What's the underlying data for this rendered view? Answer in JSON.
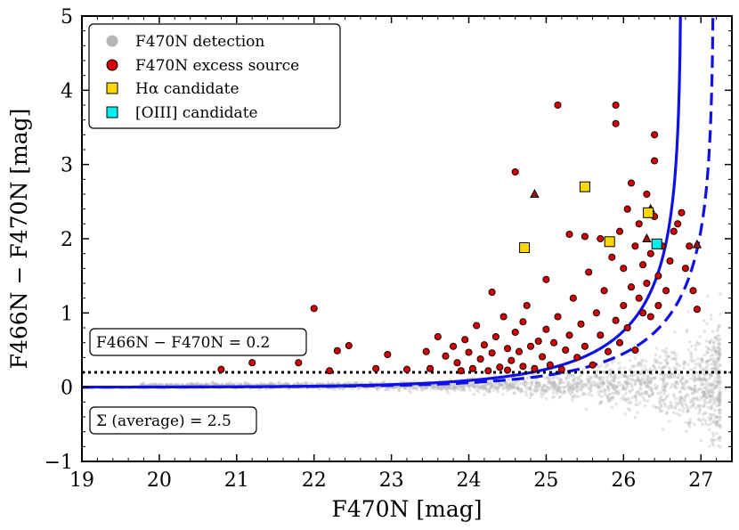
{
  "colors": {
    "detection": "#b5b5b5",
    "excess": "#d40000",
    "halpha": "#ffd700",
    "oiii": "#00f0f0",
    "curve": "#1010e8",
    "frame": "#000000"
  },
  "legend": {
    "placement": "top-left",
    "entries": [
      {
        "label": "F470N detection",
        "marker": "circle",
        "color": "#b5b5b5"
      },
      {
        "label": "F470N excess source",
        "marker": "circle",
        "color": "#d40000"
      },
      {
        "label": "Hα candidate",
        "marker": "square",
        "color": "#ffd700"
      },
      {
        "label": "[OIII] candidate",
        "marker": "square",
        "color": "#00f0f0"
      }
    ]
  },
  "annotations": {
    "threshold": "F466N − F470N = 0.2",
    "sigma": "Σ (average) = 2.5"
  },
  "chart_data": {
    "type": "scatter",
    "title": "",
    "xlabel": "F470N [mag]",
    "ylabel": "F466N − F470N [mag]",
    "xlim": [
      19,
      27.4
    ],
    "ylim": [
      -1,
      5
    ],
    "xticks": [
      "19",
      "20",
      "21",
      "22",
      "23",
      "24",
      "25",
      "26",
      "27"
    ],
    "yticks": [
      "−1",
      "0",
      "1",
      "2",
      "3",
      "4",
      "5"
    ],
    "grid": false,
    "threshold_line": {
      "y": 0.2,
      "style": "dotted"
    },
    "curves": [
      {
        "style": "solid",
        "mag_limit": 26.8,
        "scale": 1.05
      },
      {
        "style": "dashed",
        "mag_limit": 27.22,
        "scale": 1.05
      }
    ],
    "detection_cloud": {
      "approximate": true,
      "count": 2200
    },
    "series": [
      {
        "name": "F470N excess source",
        "marker": "circle",
        "points": [
          [
            20.8,
            0.24
          ],
          [
            21.2,
            0.33
          ],
          [
            21.8,
            0.33
          ],
          [
            22.0,
            1.06
          ],
          [
            22.2,
            0.22
          ],
          [
            22.3,
            0.49
          ],
          [
            22.45,
            0.56
          ],
          [
            22.8,
            0.25
          ],
          [
            22.95,
            0.44
          ],
          [
            23.2,
            0.24
          ],
          [
            23.45,
            0.48
          ],
          [
            23.5,
            0.25
          ],
          [
            23.6,
            0.68
          ],
          [
            23.7,
            0.42
          ],
          [
            23.8,
            0.55
          ],
          [
            23.85,
            0.33
          ],
          [
            23.9,
            0.22
          ],
          [
            23.95,
            0.64
          ],
          [
            24.0,
            0.47
          ],
          [
            24.05,
            0.25
          ],
          [
            24.1,
            0.83
          ],
          [
            24.15,
            0.38
          ],
          [
            24.2,
            0.57
          ],
          [
            24.25,
            0.22
          ],
          [
            24.3,
            1.28
          ],
          [
            24.3,
            0.46
          ],
          [
            24.35,
            0.68
          ],
          [
            24.4,
            0.27
          ],
          [
            24.45,
            0.95
          ],
          [
            24.5,
            0.52
          ],
          [
            24.5,
            0.23
          ],
          [
            24.55,
            0.36
          ],
          [
            24.6,
            0.74
          ],
          [
            24.6,
            2.9
          ],
          [
            24.65,
            0.48
          ],
          [
            24.7,
            0.28
          ],
          [
            24.7,
            0.88
          ],
          [
            24.75,
            1.1
          ],
          [
            24.8,
            0.55
          ],
          [
            24.85,
            0.25
          ],
          [
            24.9,
            0.62
          ],
          [
            24.95,
            0.41
          ],
          [
            25.0,
            0.78
          ],
          [
            25.0,
            1.45
          ],
          [
            25.05,
            0.3
          ],
          [
            25.1,
            0.6
          ],
          [
            25.15,
            3.8
          ],
          [
            25.15,
            0.95
          ],
          [
            25.2,
            0.24
          ],
          [
            25.25,
            0.5
          ],
          [
            25.3,
            2.06
          ],
          [
            25.3,
            0.7
          ],
          [
            25.35,
            1.2
          ],
          [
            25.4,
            0.4
          ],
          [
            25.45,
            0.85
          ],
          [
            25.5,
            2.03
          ],
          [
            25.5,
            0.55
          ],
          [
            25.55,
            1.55
          ],
          [
            25.6,
            0.3
          ],
          [
            25.65,
            1.0
          ],
          [
            25.7,
            2.0
          ],
          [
            25.7,
            0.7
          ],
          [
            25.75,
            1.3
          ],
          [
            25.8,
            0.48
          ],
          [
            25.85,
            1.75
          ],
          [
            25.9,
            3.8
          ],
          [
            25.9,
            3.55
          ],
          [
            25.9,
            0.9
          ],
          [
            25.95,
            2.1
          ],
          [
            25.95,
            0.6
          ],
          [
            26.0,
            1.6
          ],
          [
            26.0,
            1.1
          ],
          [
            26.05,
            2.4
          ],
          [
            26.05,
            0.8
          ],
          [
            26.1,
            1.35
          ],
          [
            26.1,
            2.75
          ],
          [
            26.15,
            1.9
          ],
          [
            26.15,
            0.5
          ],
          [
            26.2,
            1.2
          ],
          [
            26.2,
            2.2
          ],
          [
            26.25,
            1.0
          ],
          [
            26.25,
            1.65
          ],
          [
            26.3,
            1.4
          ],
          [
            26.3,
            2.6
          ],
          [
            26.35,
            1.8
          ],
          [
            26.35,
            0.95
          ],
          [
            26.4,
            3.4
          ],
          [
            26.4,
            3.05
          ],
          [
            26.4,
            2.3
          ],
          [
            26.45,
            1.5
          ],
          [
            26.45,
            1.1
          ],
          [
            26.5,
            1.9
          ],
          [
            26.55,
            1.3
          ],
          [
            26.6,
            1.7
          ],
          [
            26.65,
            2.1
          ],
          [
            26.7,
            2.2
          ],
          [
            26.75,
            2.35
          ],
          [
            26.8,
            1.6
          ],
          [
            26.85,
            1.9
          ],
          [
            26.9,
            1.3
          ],
          [
            26.95,
            1.05
          ]
        ]
      },
      {
        "name": "",
        "marker": "triangle",
        "points": [
          [
            24.85,
            2.6
          ],
          [
            26.3,
            2.0
          ],
          [
            26.35,
            2.4
          ],
          [
            26.95,
            1.92
          ]
        ]
      },
      {
        "name": "Hα candidate",
        "marker": "square",
        "points": [
          [
            24.72,
            1.88
          ],
          [
            25.5,
            2.7
          ],
          [
            25.82,
            1.96
          ],
          [
            26.32,
            2.35
          ]
        ]
      },
      {
        "name": "[OIII] candidate",
        "marker": "square",
        "points": [
          [
            26.43,
            1.93
          ]
        ]
      }
    ]
  }
}
